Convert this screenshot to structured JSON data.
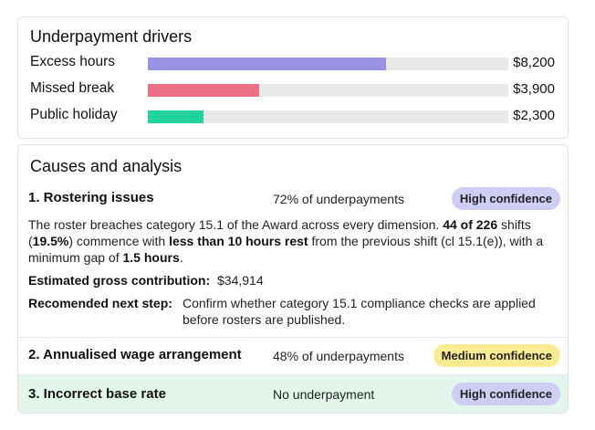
{
  "drivers": {
    "title": "Underpayment drivers",
    "items": [
      {
        "label": "Excess hours",
        "value": "$8,200",
        "fraction": 0.66,
        "color": "#9a93e4"
      },
      {
        "label": "Missed break",
        "value": "$3,900",
        "fraction": 0.31,
        "color": "#ec6f86"
      },
      {
        "label": "Public holiday",
        "value": "$2,300",
        "fraction": 0.155,
        "color": "#22d39b"
      }
    ]
  },
  "analysis": {
    "title": "Causes and analysis",
    "causes": [
      {
        "title": "1. Rostering issues",
        "share": "72% of underpayments",
        "confidence": "High confidence",
        "description": {
          "p1": "The roster breaches category 15.1 of the Award across every dimension. ",
          "b1": "44 of 226",
          "p2": " shifts (",
          "b2": "19.5%",
          "p3": ") commence with ",
          "b3": "less than 10 hours rest",
          "p4": " from the previous shift (cl 15.1(e)), with a minimum gap of ",
          "b4": "1.5 hours",
          "p5": "."
        },
        "estimate_label": "Estimated gross contribution:",
        "estimate_value": "$34,914",
        "next_step_label": "Recomended next step:",
        "next_step_value": "Confirm whether category 15.1 compliance checks are applied before rosters are published."
      },
      {
        "title": "2. Annualised wage arrangement",
        "share": "48% of underpayments",
        "confidence": "Medium confidence"
      },
      {
        "title": "3. Incorrect base rate",
        "share": "No underpayment",
        "confidence": "High confidence"
      }
    ]
  }
}
